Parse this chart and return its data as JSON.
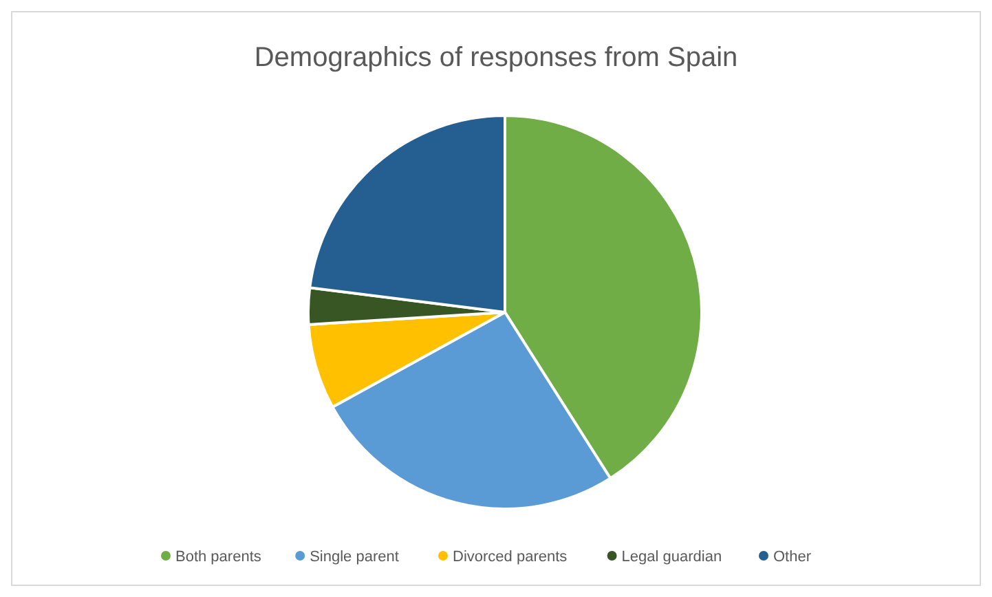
{
  "chart_data": {
    "type": "pie",
    "title": "Demographics of responses from Spain",
    "categories": [
      "Both parents",
      "Single parent",
      "Divorced parents",
      "Legal guardian",
      "Other"
    ],
    "values": [
      41,
      26,
      7,
      3,
      23
    ],
    "colors": [
      "#70ad47",
      "#5b9bd5",
      "#ffc000",
      "#375623",
      "#255e91"
    ],
    "legend": "bottom"
  }
}
